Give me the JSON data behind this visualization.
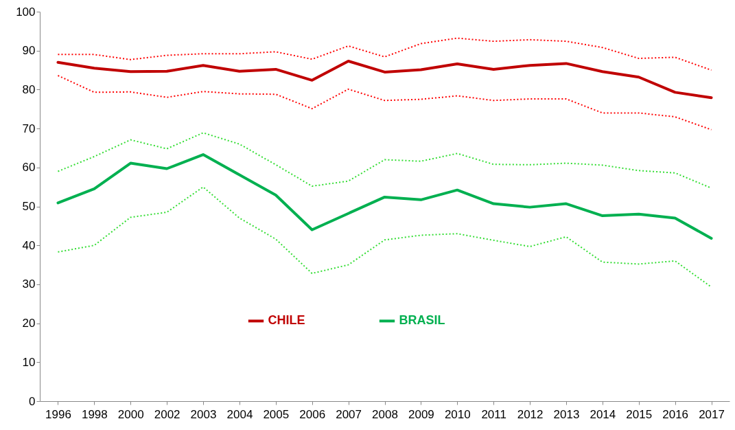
{
  "chart_data": {
    "type": "line",
    "categories": [
      "1996",
      "1998",
      "2000",
      "2002",
      "2003",
      "2004",
      "2005",
      "2006",
      "2007",
      "2008",
      "2009",
      "2010",
      "2011",
      "2012",
      "2013",
      "2014",
      "2015",
      "2016",
      "2017"
    ],
    "ylim": [
      0,
      100
    ],
    "yticks": [
      0,
      10,
      20,
      30,
      40,
      50,
      60,
      70,
      80,
      90,
      100
    ],
    "grid": false,
    "legend": "bottom",
    "marker": "none",
    "series": [
      {
        "name": "CHILE",
        "color": "#c00000",
        "line_style": "solid",
        "values": [
          87.0,
          85.5,
          84.6,
          84.7,
          86.2,
          84.7,
          85.2,
          82.4,
          87.3,
          84.5,
          85.1,
          86.6,
          85.2,
          86.2,
          86.7,
          84.6,
          83.2,
          79.3,
          77.9
        ]
      },
      {
        "color": "#ff0000",
        "line_style": "dotted",
        "values": [
          89.0,
          89.0,
          87.7,
          88.8,
          89.2,
          89.2,
          89.7,
          87.8,
          91.2,
          88.4,
          91.8,
          93.2,
          92.4,
          92.8,
          92.4,
          90.8,
          88.0,
          88.3,
          85.0
        ]
      },
      {
        "color": "#ff0000",
        "line_style": "dotted",
        "values": [
          83.6,
          79.3,
          79.4,
          78.0,
          79.5,
          78.9,
          78.8,
          75.1,
          80.1,
          77.2,
          77.5,
          78.4,
          77.2,
          77.6,
          77.6,
          74.0,
          74.0,
          73.0,
          69.7
        ]
      },
      {
        "name": "BRASIL",
        "color": "#00b050",
        "line_style": "solid",
        "values": [
          50.9,
          54.5,
          61.1,
          59.7,
          63.3,
          58.1,
          52.9,
          44.0,
          48.2,
          52.4,
          51.7,
          54.2,
          50.7,
          49.8,
          50.7,
          47.6,
          48.0,
          47.0,
          41.8
        ]
      },
      {
        "color": "#33dd33",
        "line_style": "dotted",
        "values": [
          59.0,
          62.8,
          67.1,
          64.8,
          68.9,
          66.0,
          60.7,
          55.2,
          56.5,
          62.0,
          61.6,
          63.6,
          60.8,
          60.7,
          61.1,
          60.6,
          59.2,
          58.6,
          54.7
        ]
      },
      {
        "color": "#33dd33",
        "line_style": "dotted",
        "values": [
          38.3,
          40.0,
          47.2,
          48.5,
          55.0,
          47.0,
          41.6,
          32.8,
          35.0,
          41.4,
          42.6,
          43.0,
          41.3,
          39.7,
          42.2,
          35.7,
          35.2,
          36.0,
          29.3
        ]
      }
    ]
  }
}
